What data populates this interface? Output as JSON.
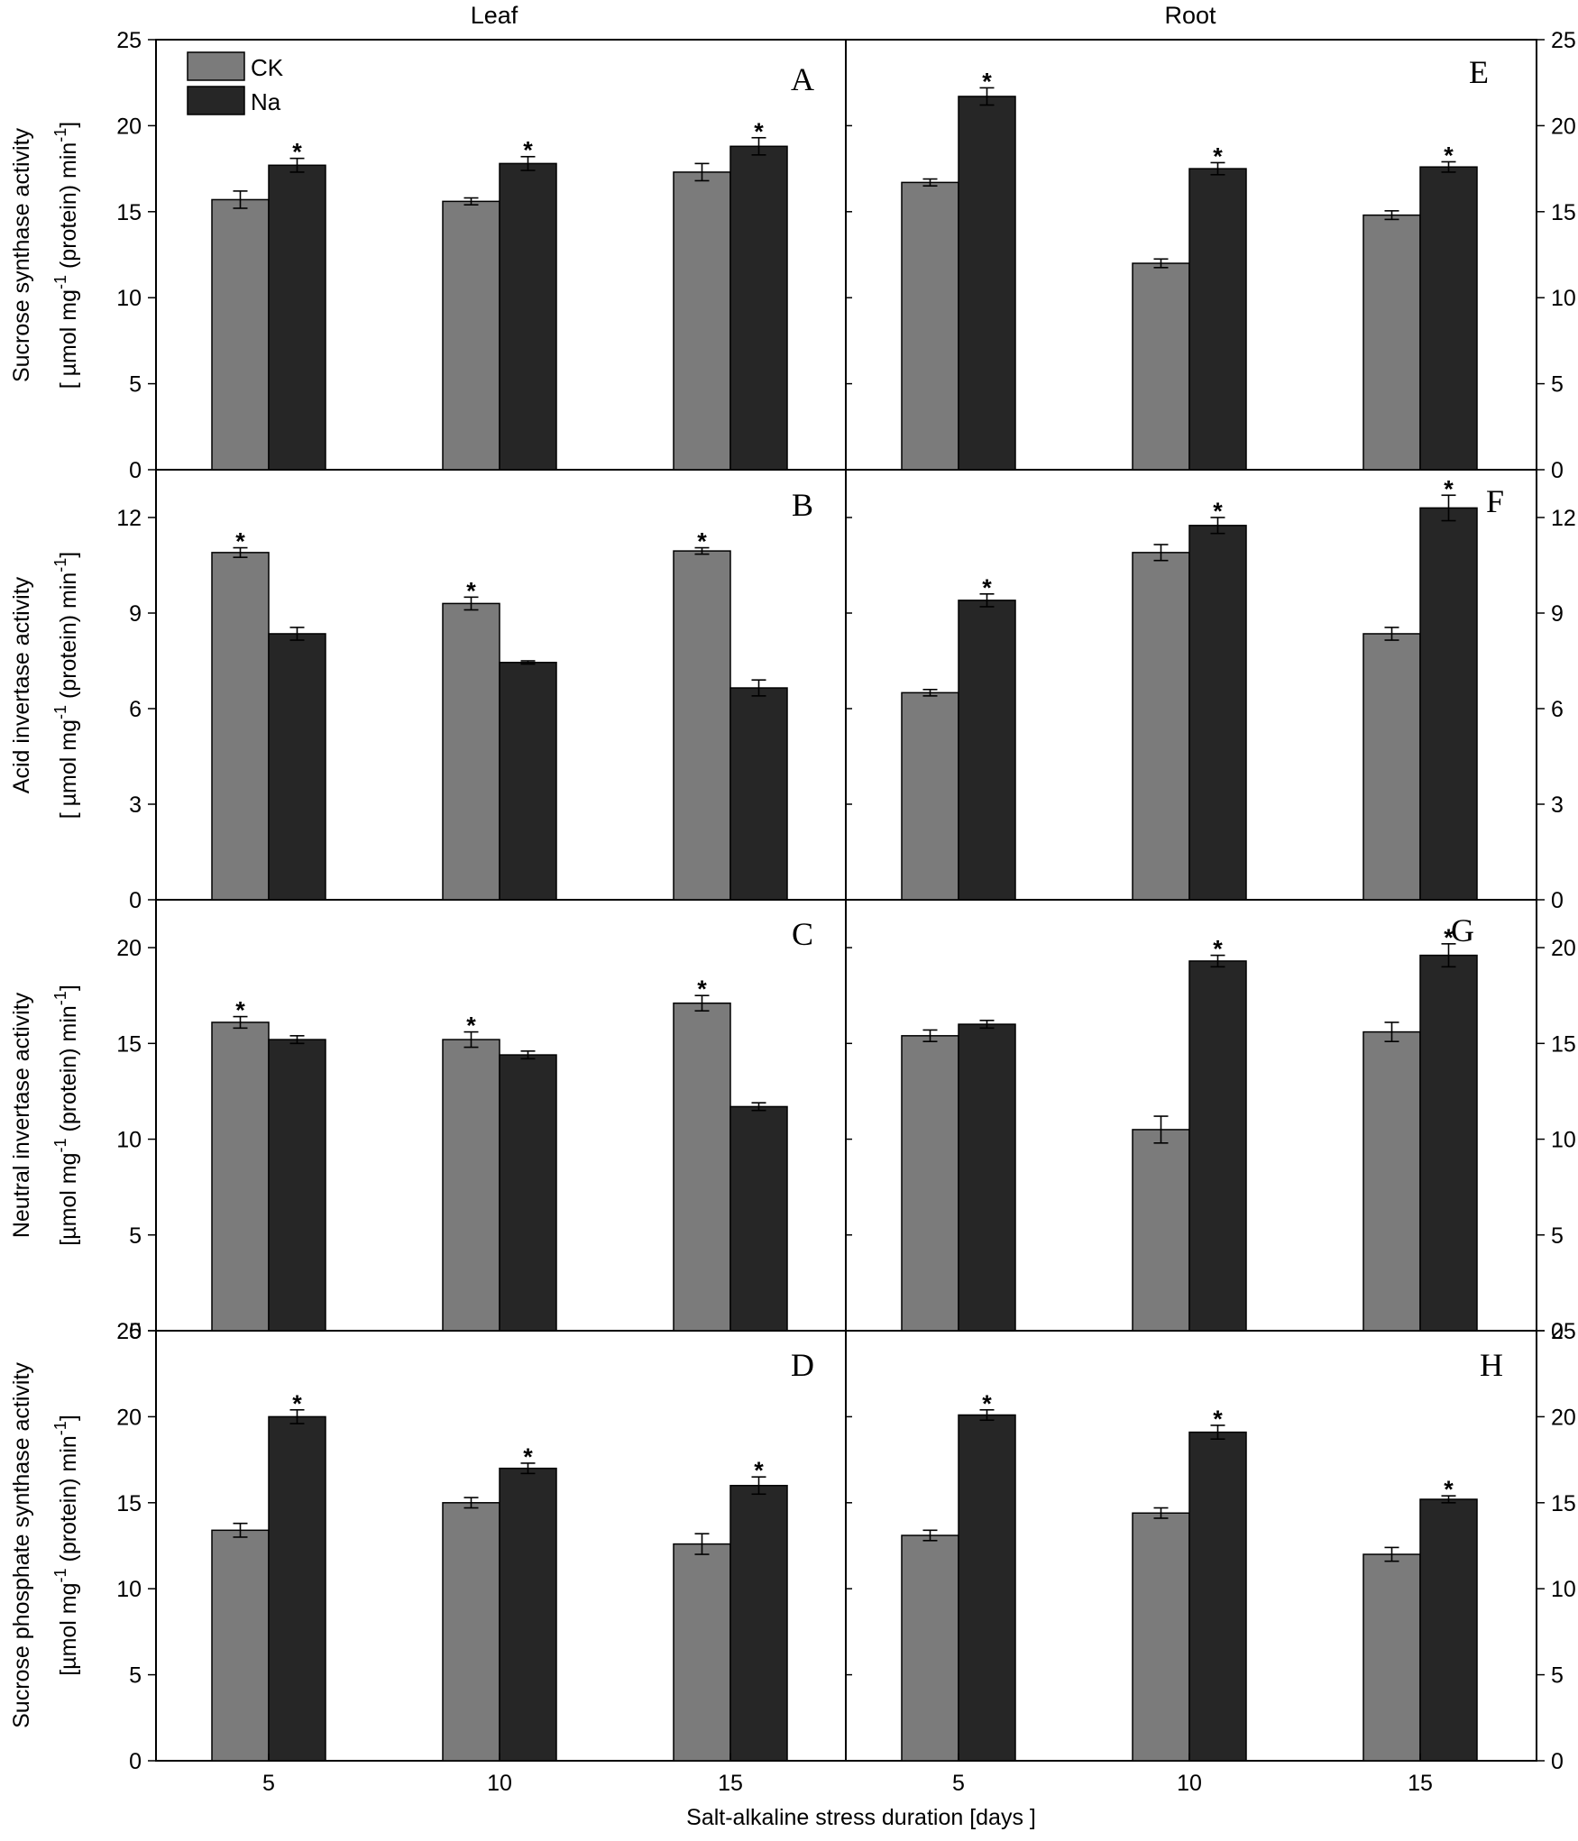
{
  "figure": {
    "column_titles": [
      "Leaf",
      "Root"
    ],
    "x_axis_title": "Salt-alkaline stress duration [days ]"
  },
  "legend": [
    {
      "name": "CK",
      "color": "#7b7b7b"
    },
    {
      "name": "Na",
      "color": "#262626"
    }
  ],
  "colors": {
    "ck": "#7b7b7b",
    "na": "#262626",
    "axis": "#000000"
  },
  "row_labels": [
    {
      "line1": "Sucrose synthase activity",
      "line2_pre": "[ µmol mg",
      "line2_mid": " (protein) min",
      "sup": "-1",
      "line2_post": "]"
    },
    {
      "line1": "Acid invertase activity",
      "line2_pre": "[ µmol mg",
      "line2_mid": " (protein) min",
      "sup": "-1",
      "line2_post": "]"
    },
    {
      "line1": "Neutral invertase activity",
      "line2_pre": "[µmol mg",
      "line2_mid": " (protein) min",
      "sup": "-1",
      "line2_post": "]"
    },
    {
      "line1": "Sucrose phosphate synthase activity",
      "line2_pre": "[µmol mg",
      "line2_mid": " (protein) min",
      "sup": "-1",
      "line2_post": "]"
    }
  ],
  "chart_data": [
    {
      "type": "bar",
      "panel": "A",
      "tissue": "Leaf",
      "categories": [
        "5",
        "10",
        "15"
      ],
      "ylim": [
        0,
        25
      ],
      "yticks": [
        "0",
        "5",
        "10",
        "15",
        "20",
        "25"
      ],
      "series": [
        {
          "name": "CK",
          "values": [
            15.7,
            15.6,
            17.3
          ],
          "errors": [
            0.5,
            0.2,
            0.5
          ]
        },
        {
          "name": "Na",
          "values": [
            17.7,
            17.8,
            18.8
          ],
          "errors": [
            0.4,
            0.4,
            0.5
          ]
        }
      ],
      "significance": [
        [
          false,
          false,
          false
        ],
        [
          true,
          true,
          true
        ]
      ]
    },
    {
      "type": "bar",
      "panel": "B",
      "tissue": "Leaf",
      "categories": [
        "5",
        "10",
        "15"
      ],
      "ylim": [
        0,
        13.5
      ],
      "yticks": [
        "0",
        "3",
        "6",
        "9",
        "12"
      ],
      "series": [
        {
          "name": "CK",
          "values": [
            10.9,
            9.3,
            10.95
          ],
          "errors": [
            0.15,
            0.2,
            0.1
          ]
        },
        {
          "name": "Na",
          "values": [
            8.35,
            7.45,
            6.65
          ],
          "errors": [
            0.2,
            0.05,
            0.25
          ]
        }
      ],
      "significance": [
        [
          true,
          true,
          true
        ],
        [
          false,
          false,
          false
        ]
      ]
    },
    {
      "type": "bar",
      "panel": "C",
      "tissue": "Leaf",
      "categories": [
        "5",
        "10",
        "15"
      ],
      "ylim": [
        0,
        22.5
      ],
      "yticks": [
        "0",
        "5",
        "10",
        "15",
        "20"
      ],
      "series": [
        {
          "name": "CK",
          "values": [
            16.1,
            15.2,
            17.1
          ],
          "errors": [
            0.3,
            0.4,
            0.4
          ]
        },
        {
          "name": "Na",
          "values": [
            15.2,
            14.4,
            11.7
          ],
          "errors": [
            0.2,
            0.2,
            0.2
          ]
        }
      ],
      "significance": [
        [
          true,
          true,
          true
        ],
        [
          false,
          false,
          false
        ]
      ]
    },
    {
      "type": "bar",
      "panel": "D",
      "tissue": "Leaf",
      "categories": [
        "5",
        "10",
        "15"
      ],
      "ylim": [
        0,
        25
      ],
      "yticks": [
        "0",
        "5",
        "10",
        "15",
        "20",
        "25"
      ],
      "series": [
        {
          "name": "CK",
          "values": [
            13.4,
            15.0,
            12.6
          ],
          "errors": [
            0.4,
            0.3,
            0.6
          ]
        },
        {
          "name": "Na",
          "values": [
            20.0,
            17.0,
            16.0
          ],
          "errors": [
            0.4,
            0.3,
            0.5
          ]
        }
      ],
      "significance": [
        [
          false,
          false,
          false
        ],
        [
          true,
          true,
          true
        ]
      ]
    },
    {
      "type": "bar",
      "panel": "E",
      "tissue": "Root",
      "categories": [
        "5",
        "10",
        "15"
      ],
      "ylim": [
        0,
        25
      ],
      "yticks": [
        "0",
        "5",
        "10",
        "15",
        "20",
        "25"
      ],
      "series": [
        {
          "name": "CK",
          "values": [
            16.7,
            12.0,
            14.8
          ],
          "errors": [
            0.2,
            0.25,
            0.25
          ]
        },
        {
          "name": "Na",
          "values": [
            21.7,
            17.5,
            17.6
          ],
          "errors": [
            0.5,
            0.35,
            0.3
          ]
        }
      ],
      "significance": [
        [
          false,
          false,
          false
        ],
        [
          true,
          true,
          true
        ]
      ]
    },
    {
      "type": "bar",
      "panel": "F",
      "tissue": "Root",
      "categories": [
        "5",
        "10",
        "15"
      ],
      "ylim": [
        0,
        13.5
      ],
      "yticks": [
        "0",
        "3",
        "6",
        "9",
        "12"
      ],
      "series": [
        {
          "name": "CK",
          "values": [
            6.5,
            10.9,
            8.35
          ],
          "errors": [
            0.1,
            0.25,
            0.2
          ]
        },
        {
          "name": "Na",
          "values": [
            9.4,
            11.75,
            12.3
          ],
          "errors": [
            0.2,
            0.25,
            0.4
          ]
        }
      ],
      "significance": [
        [
          false,
          false,
          false
        ],
        [
          true,
          true,
          true
        ]
      ]
    },
    {
      "type": "bar",
      "panel": "G",
      "tissue": "Root",
      "categories": [
        "5",
        "10",
        "15"
      ],
      "ylim": [
        0,
        22.5
      ],
      "yticks": [
        "0",
        "5",
        "10",
        "15",
        "20"
      ],
      "series": [
        {
          "name": "CK",
          "values": [
            15.4,
            10.5,
            15.6
          ],
          "errors": [
            0.3,
            0.7,
            0.5
          ]
        },
        {
          "name": "Na",
          "values": [
            16.0,
            19.3,
            19.6
          ],
          "errors": [
            0.2,
            0.3,
            0.6
          ]
        }
      ],
      "significance": [
        [
          false,
          false,
          false
        ],
        [
          false,
          true,
          true
        ]
      ]
    },
    {
      "type": "bar",
      "panel": "H",
      "tissue": "Root",
      "categories": [
        "5",
        "10",
        "15"
      ],
      "ylim": [
        0,
        25
      ],
      "yticks": [
        "0",
        "5",
        "10",
        "15",
        "20",
        "25"
      ],
      "series": [
        {
          "name": "CK",
          "values": [
            13.1,
            14.4,
            12.0
          ],
          "errors": [
            0.3,
            0.3,
            0.4
          ]
        },
        {
          "name": "Na",
          "values": [
            20.1,
            19.1,
            15.2
          ],
          "errors": [
            0.3,
            0.4,
            0.2
          ]
        }
      ],
      "significance": [
        [
          false,
          false,
          false
        ],
        [
          true,
          true,
          true
        ]
      ]
    }
  ]
}
